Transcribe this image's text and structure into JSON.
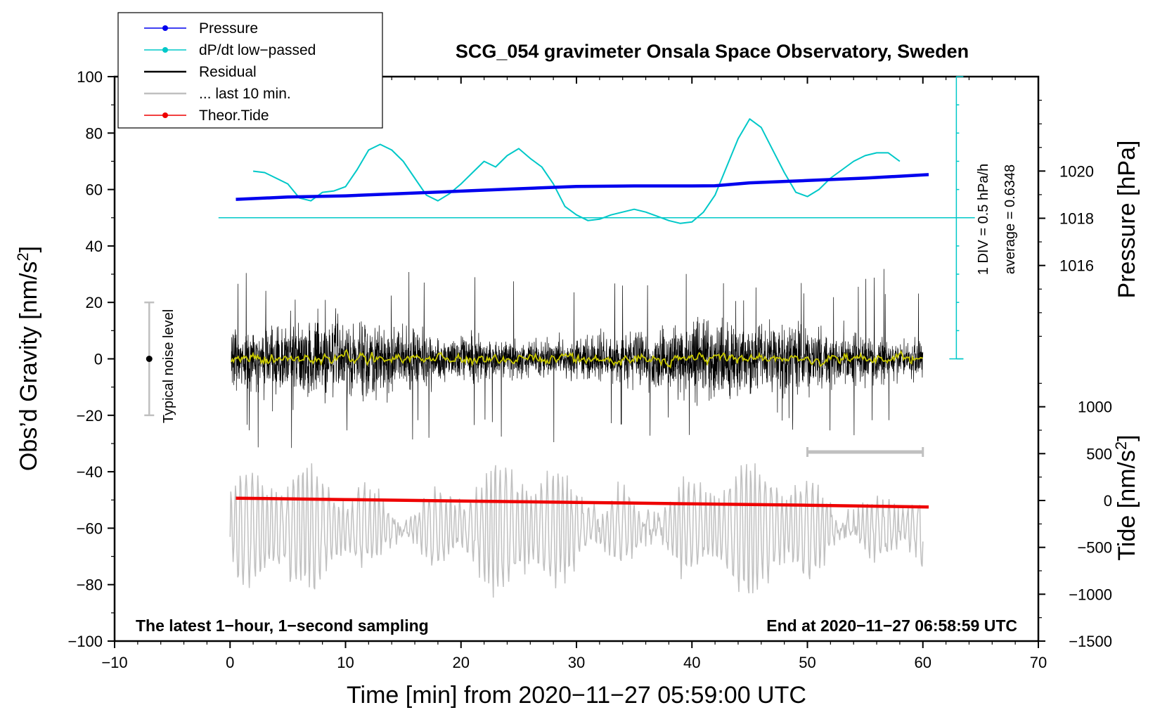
{
  "chart_data": {
    "type": "line",
    "title": "SCG_054 gravimeter Onsala Space Observatory, Sweden",
    "xlabel": "Time [min] from 2020−11−27 05:59:00 UTC",
    "ylabel_left_main": "Obs’d Gravity [nm/s",
    "ylabel_left_sup": "2",
    "ylabel_left_close": "]",
    "ylabel_right_top": "Pressure [hPa]",
    "ylabel_right_bottom_main": "Tide [nm/s",
    "ylabel_right_bottom_sup": "2",
    "ylabel_right_bottom_close": "]",
    "xlim": [
      -10,
      70
    ],
    "ylim": [
      -100,
      100
    ],
    "pressure_lim": [
      1012,
      1024
    ],
    "tide_lim": [
      -1500,
      1500
    ],
    "x_ticks": [
      {
        "v": -10,
        "label": "−10"
      },
      {
        "v": 0,
        "label": "0"
      },
      {
        "v": 10,
        "label": "10"
      },
      {
        "v": 20,
        "label": "20"
      },
      {
        "v": 30,
        "label": "30"
      },
      {
        "v": 40,
        "label": "40"
      },
      {
        "v": 50,
        "label": "50"
      },
      {
        "v": 60,
        "label": "60"
      },
      {
        "v": 70,
        "label": "70"
      }
    ],
    "y_ticks": [
      {
        "v": 100,
        "label": "100"
      },
      {
        "v": 80,
        "label": "80"
      },
      {
        "v": 60,
        "label": "60"
      },
      {
        "v": 40,
        "label": "40"
      },
      {
        "v": 20,
        "label": "20"
      },
      {
        "v": 0,
        "label": "0"
      },
      {
        "v": -20,
        "label": "−20"
      },
      {
        "v": -40,
        "label": "−40"
      },
      {
        "v": -60,
        "label": "−60"
      },
      {
        "v": -80,
        "label": "−80"
      },
      {
        "v": -100,
        "label": "−100"
      }
    ],
    "pressure_ticks": [
      {
        "v": 1020,
        "label": "1020"
      },
      {
        "v": 1018,
        "label": "1018"
      },
      {
        "v": 1016,
        "label": "1016"
      }
    ],
    "tide_ticks": [
      {
        "v": 1000,
        "label": "1000"
      },
      {
        "v": 500,
        "label": "500"
      },
      {
        "v": 0,
        "label": "0"
      },
      {
        "v": -500,
        "label": "−500"
      },
      {
        "v": -1000,
        "label": "−1000"
      },
      {
        "v": -1500,
        "label": "−1500"
      }
    ],
    "series": [
      {
        "name": "Pressure",
        "color": "#0000ee",
        "axis": "pressure",
        "x": [
          0.5,
          5,
          10,
          15,
          20,
          25,
          30,
          35,
          40,
          42,
          45,
          50,
          55,
          60.5
        ],
        "y": [
          1018.8,
          1018.9,
          1018.95,
          1019.05,
          1019.15,
          1019.25,
          1019.35,
          1019.37,
          1019.37,
          1019.38,
          1019.5,
          1019.6,
          1019.7,
          1019.85
        ]
      },
      {
        "name": "dP/dt low−passed",
        "color": "#00c8c8",
        "axis": "gravity",
        "x": [
          2,
          3,
          4,
          5,
          6,
          7,
          8,
          9,
          10,
          11,
          12,
          13,
          14,
          15,
          16,
          17,
          18,
          19,
          20,
          21,
          22,
          23,
          24,
          25,
          26,
          27,
          28,
          29,
          30,
          31,
          32,
          33,
          34,
          35,
          36,
          37,
          38,
          39,
          40,
          41,
          42,
          43,
          44,
          45,
          46,
          47,
          48,
          49,
          50,
          51,
          52,
          53,
          54,
          55,
          56,
          57,
          58
        ],
        "y": [
          66.5,
          66,
          64,
          62,
          57,
          56,
          59,
          59.5,
          61,
          67,
          74,
          76,
          74,
          70,
          64,
          58,
          56,
          58.5,
          62,
          66,
          70,
          68,
          72,
          74.5,
          71,
          68,
          62,
          54,
          51,
          49,
          49.5,
          51,
          52,
          53,
          52,
          50.5,
          49,
          48,
          48.5,
          52,
          58,
          68,
          78,
          85,
          82,
          74,
          66,
          59,
          57.5,
          60,
          64,
          67,
          70,
          72,
          73,
          73,
          70
        ]
      },
      {
        "name": "Residual",
        "color": "#000000",
        "axis": "gravity",
        "note": "1-second noise, approx. amplitude ±20 nm/s² with spikes to ±33"
      },
      {
        "name": "... last 10 min.",
        "color": "#c0c0c0",
        "axis": "gravity",
        "note": "residual of last 10 minutes, magnified, offset near -60"
      },
      {
        "name": "Theor.Tide",
        "color": "#ee0000",
        "axis": "tide",
        "x": [
          0.5,
          10,
          20,
          30,
          40,
          50,
          60.5
        ],
        "y": [
          25,
          10,
          -5,
          -20,
          -35,
          -50,
          -70
        ]
      }
    ],
    "legend_position": "top-left",
    "noise_bar": {
      "x": -7,
      "y_low": -20,
      "y_high": 20,
      "label": "Typical noise level"
    },
    "time_bar": {
      "x_start": 50,
      "x_end": 60,
      "y": -33
    },
    "pressure_scale": {
      "label1": "1 DIV = 0.5 hPa/h",
      "label2": "average = 0.6348"
    },
    "footer_left": "The latest 1−hour, 1−second sampling",
    "footer_right": "End at 2020−11−27 06:58:59 UTC",
    "colors": {
      "yellow_filtered": "#c8c800"
    }
  }
}
